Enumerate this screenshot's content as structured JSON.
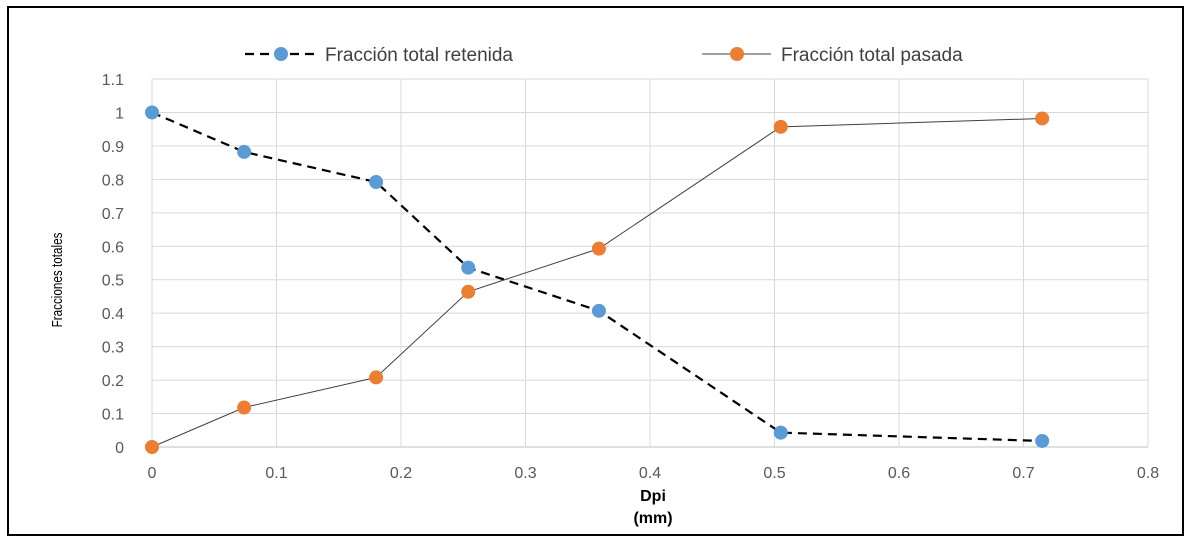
{
  "chart_data": {
    "type": "line",
    "xlabel": [
      "Dpi",
      "(mm)"
    ],
    "ylabel": "Fracciones totales",
    "xlim": [
      0,
      0.8
    ],
    "ylim": [
      0,
      1.1
    ],
    "x_ticks": [
      "0",
      "0.1",
      "0.2",
      "0.3",
      "0.4",
      "0.5",
      "0.6",
      "0.7",
      "0.8"
    ],
    "y_ticks": [
      "0",
      "0.1",
      "0.2",
      "0.3",
      "0.4",
      "0.5",
      "0.6",
      "0.7",
      "0.8",
      "0.9",
      "1",
      "1.1"
    ],
    "grid": true,
    "legend_position": "top",
    "series": [
      {
        "name": "Fracción total retenida",
        "color": "#5B9BD5",
        "line_color": "#000000",
        "line_style": "dashed",
        "x": [
          0,
          0.074,
          0.18,
          0.254,
          0.359,
          0.505,
          0.715
        ],
        "y": [
          1.0,
          0.882,
          0.792,
          0.536,
          0.407,
          0.043,
          0.018
        ]
      },
      {
        "name": "Fracción total pasada",
        "color": "#ED7D31",
        "line_color": "#404040",
        "line_style": "solid",
        "x": [
          0,
          0.074,
          0.18,
          0.254,
          0.359,
          0.505,
          0.715
        ],
        "y": [
          0.0,
          0.118,
          0.208,
          0.464,
          0.593,
          0.957,
          0.982
        ]
      }
    ]
  }
}
